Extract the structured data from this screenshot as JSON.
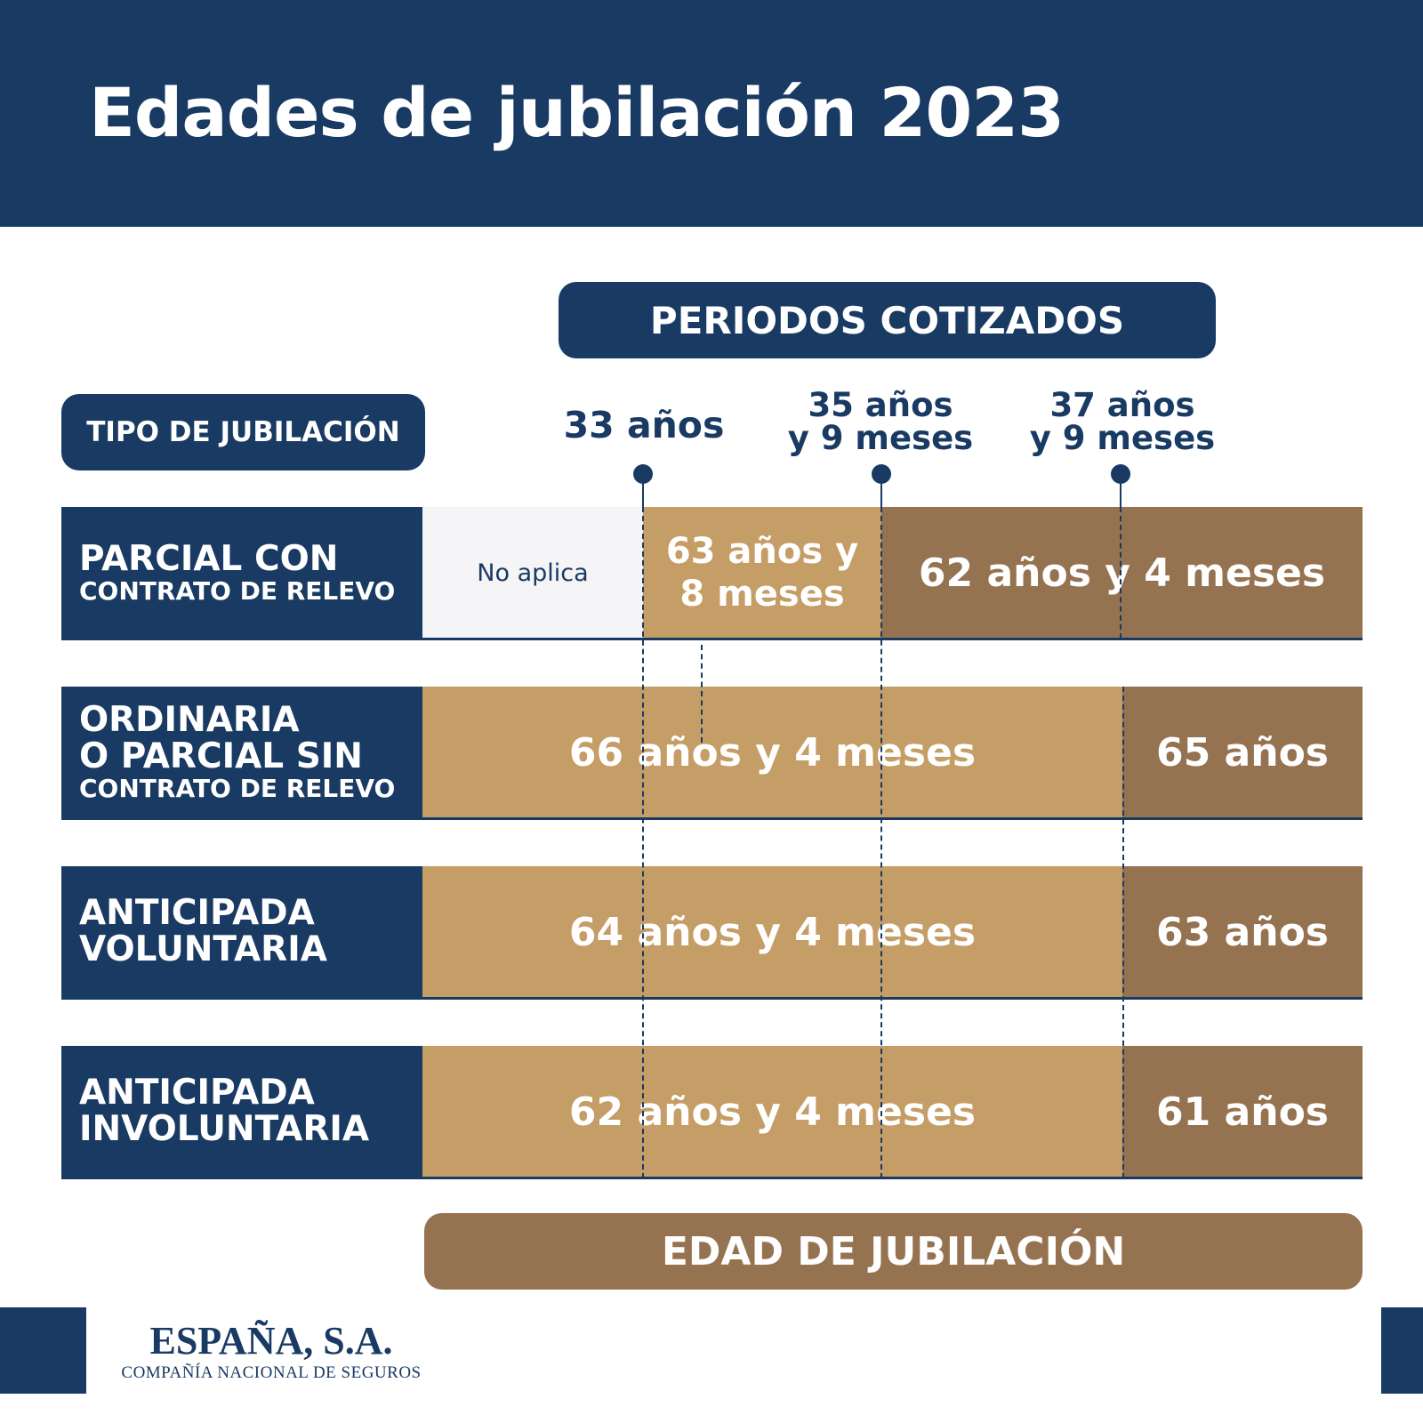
{
  "title": "Edades de jubilación 2023",
  "periods_header": "PERIODOS COTIZADOS",
  "type_header": "TIPO DE JUBILACIÓN",
  "age_footer": "EDAD DE JUBILACIÓN",
  "thresholds": [
    {
      "line1": "33 años",
      "line2": ""
    },
    {
      "line1": "35 años",
      "line2": "y 9 meses"
    },
    {
      "line1": "37 años",
      "line2": "y 9 meses"
    }
  ],
  "rows": [
    {
      "label_big": [
        "PARCIAL CON"
      ],
      "label_small": "CONTRATO DE RELEVO",
      "cells": [
        "No aplica",
        "63 años y",
        "8 meses",
        "62 años y 4 meses"
      ]
    },
    {
      "label_big": [
        "ORDINARIA",
        "O PARCIAL SIN"
      ],
      "label_small": "CONTRATO DE RELEVO",
      "cells": [
        "66 años y 4 meses",
        "65 años"
      ]
    },
    {
      "label_big": [
        "ANTICIPADA",
        "VOLUNTARIA"
      ],
      "label_small": "",
      "cells": [
        "64 años y 4 meses",
        "63 años"
      ]
    },
    {
      "label_big": [
        "ANTICIPADA",
        "INVOLUNTARIA"
      ],
      "label_small": "",
      "cells": [
        "62 años y 4 meses",
        "61 años"
      ]
    }
  ],
  "logo": {
    "name": "ESPAÑA, S.A.",
    "subtitle": "COMPAÑÍA NACIONAL DE SEGUROS"
  },
  "colors": {
    "navy": "#183a63",
    "light_gold": "#c59d66",
    "dark_gold": "#957250",
    "not_applicable": "#f5f4f6"
  }
}
